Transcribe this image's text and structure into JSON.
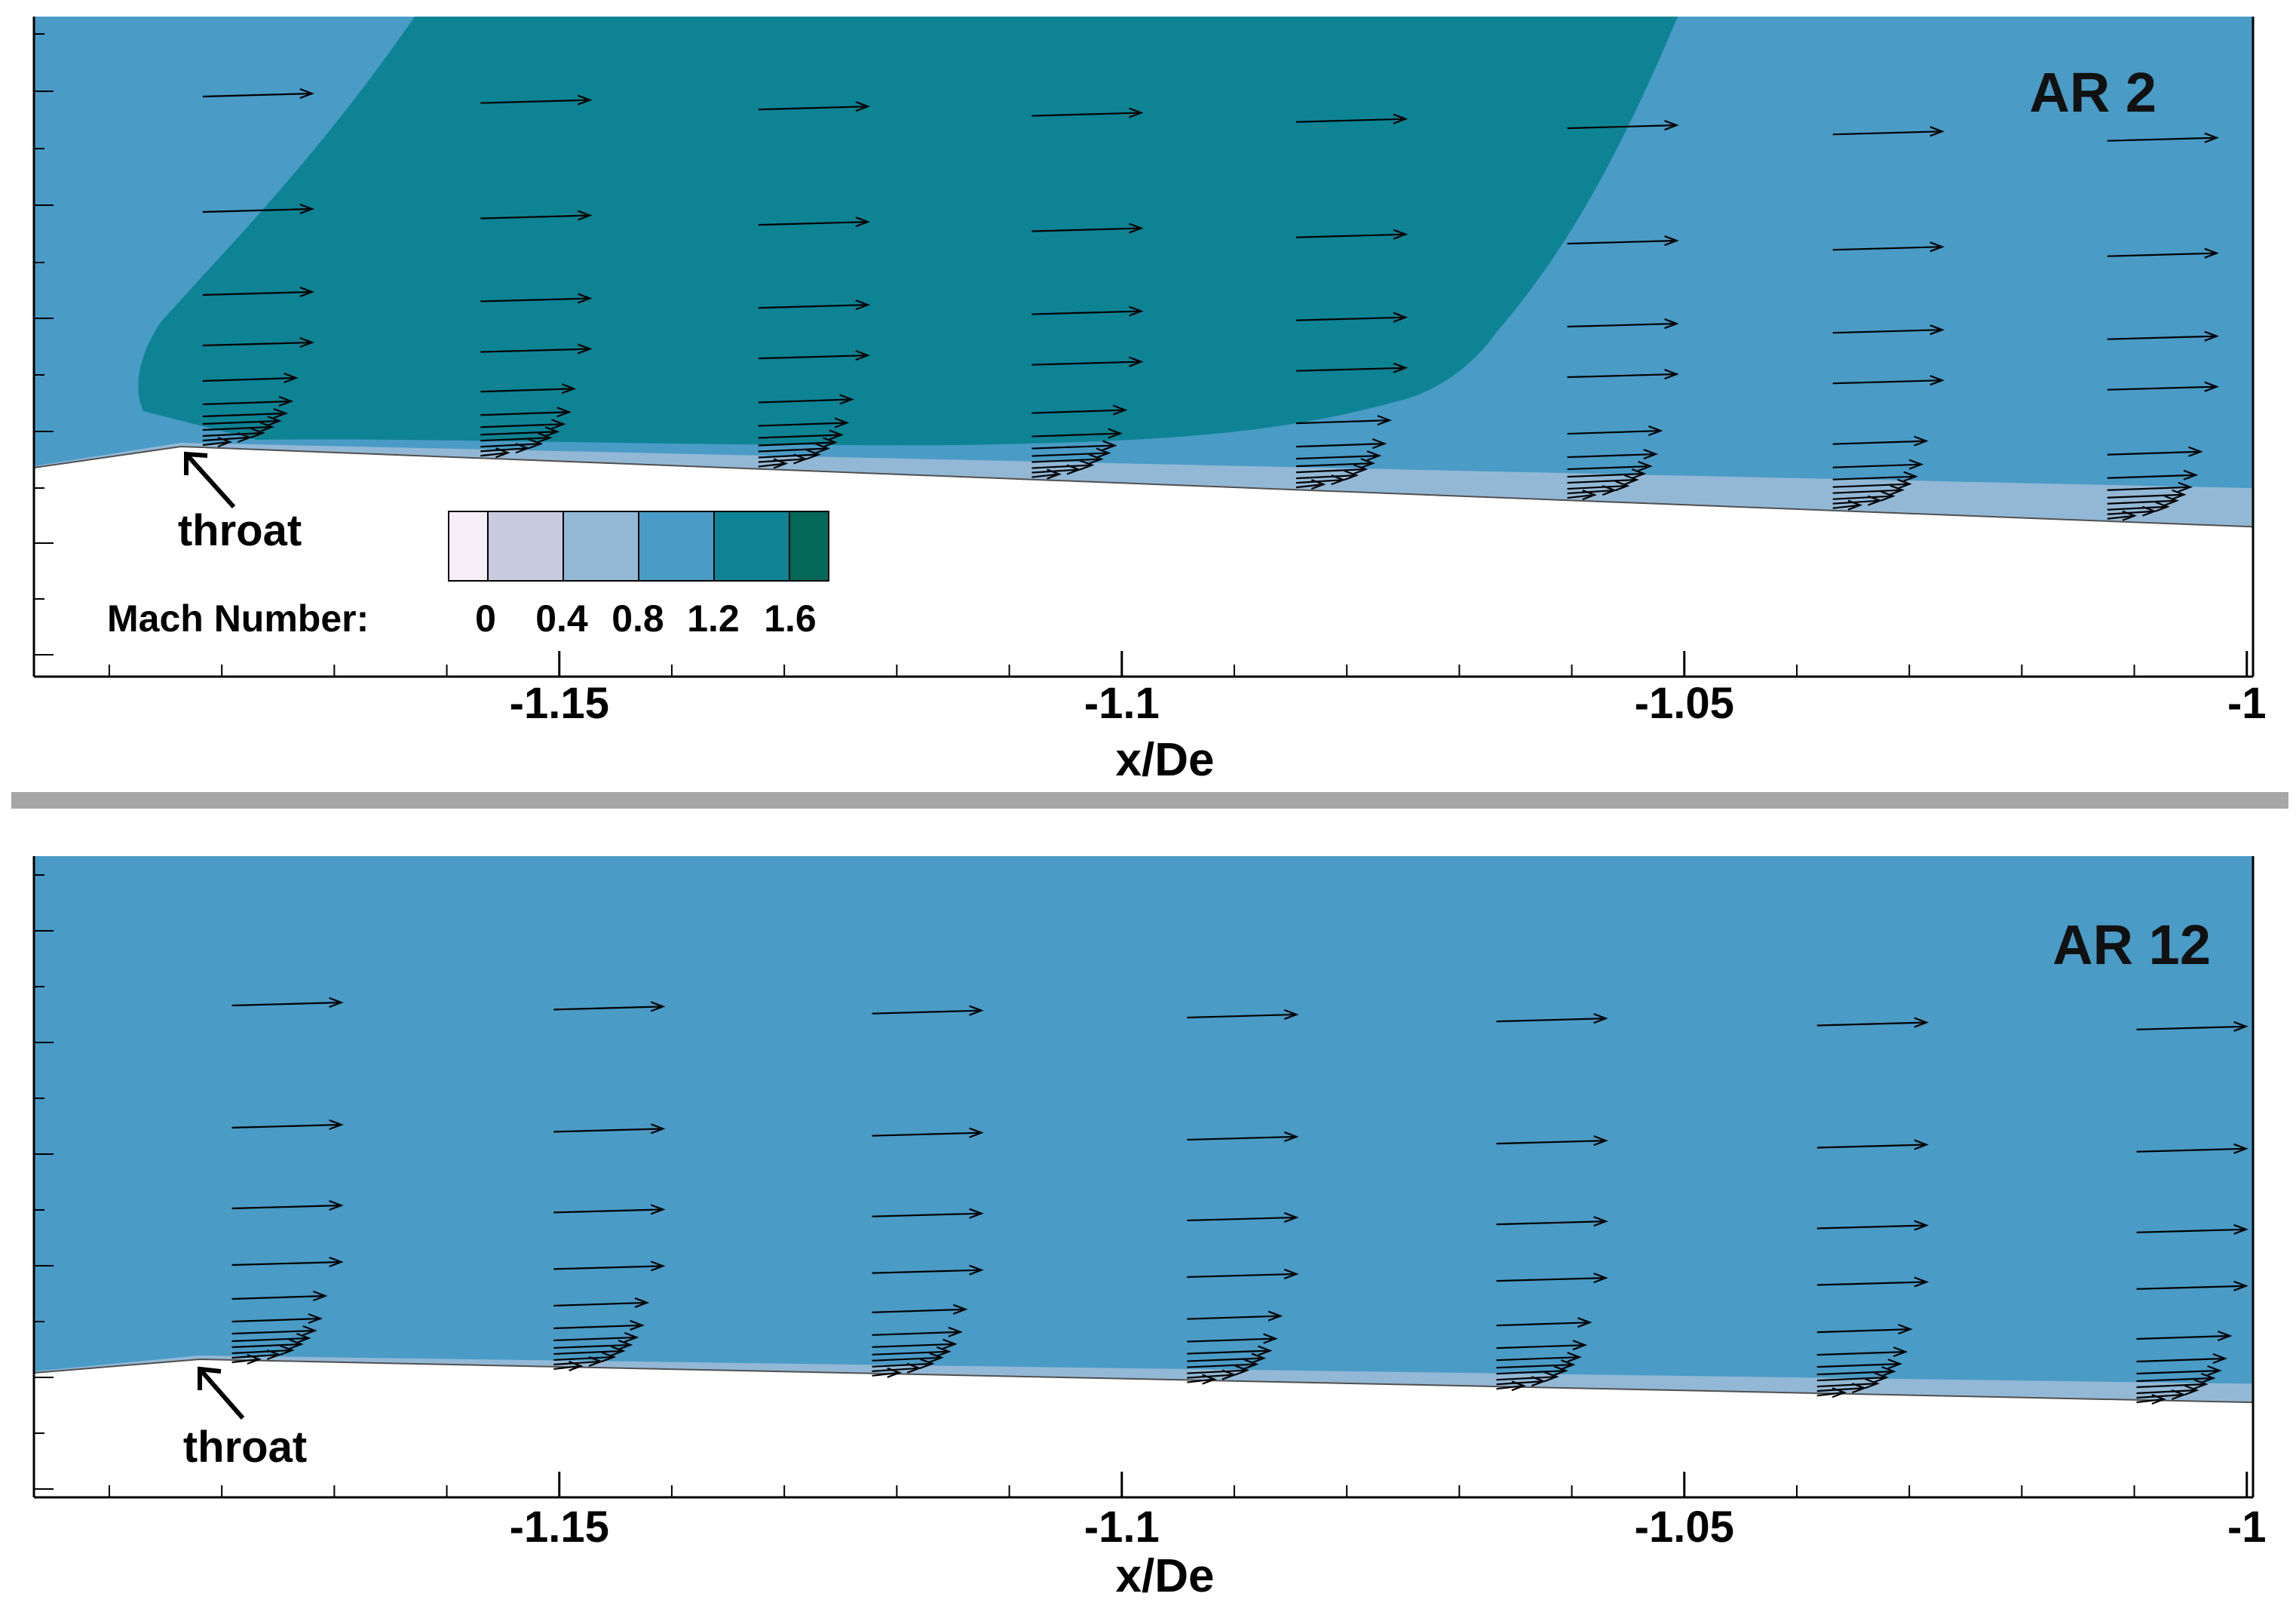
{
  "figure": {
    "separator_color": "#a6a6a6",
    "axis_color": "#000000",
    "arrow_color": "#000000",
    "boundary_fill": "#ffffff",
    "wall_line_color": "#505050"
  },
  "legend": {
    "label": "Mach Number:",
    "levels": [
      {
        "value": "0",
        "color": "#f5eef6"
      },
      {
        "value": "",
        "color": "#c8cade"
      },
      {
        "value": "0.4",
        "color": "#93b8d6"
      },
      {
        "value": "0.8",
        "color": "#4a9bc6"
      },
      {
        "value": "1.2",
        "color": "#0e8394"
      },
      {
        "value": "1.6",
        "color": "#046858"
      }
    ],
    "tick_labels": [
      "0",
      "0.4",
      "0.8",
      "1.2",
      "1.6"
    ]
  },
  "chart_data": [
    {
      "type": "contour-vector",
      "title": "AR 2",
      "xlabel": "x/De",
      "xlim": [
        -1.1967,
        -0.999
      ],
      "xticks": [
        -1.15,
        -1.1,
        -1.05,
        -1
      ],
      "x_tick_labels": [
        "-1.15",
        "-1.1",
        "-1.05",
        "-1"
      ],
      "background_mach_level": 3,
      "supersonic_region_mach_level": 4,
      "near_wall_mach_level": 2,
      "throat_label": "throat",
      "vector_stations_x": [
        -1.1817,
        -1.157,
        -1.1323,
        -1.108,
        -1.0845,
        -1.0604,
        -1.0368,
        -1.0124
      ]
    },
    {
      "type": "contour-vector",
      "title": "AR 12",
      "xlabel": "x/De",
      "xlim": [
        -1.1967,
        -0.999
      ],
      "xticks": [
        -1.15,
        -1.1,
        -1.05,
        -1
      ],
      "x_tick_labels": [
        "-1.15",
        "-1.1",
        "-1.05",
        "-1"
      ],
      "background_mach_level": 3,
      "near_wall_mach_level": 2,
      "throat_label": "throat",
      "vector_stations_x": [
        -1.1791,
        -1.1505,
        -1.1222,
        -1.0942,
        -1.0667,
        -1.0382,
        -1.0098
      ]
    }
  ]
}
